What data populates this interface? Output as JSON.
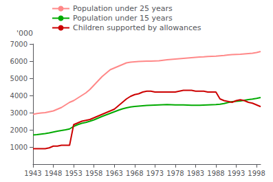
{
  "chart_data": {
    "type": "line",
    "ylabel": "'000",
    "x": [
      1943,
      1944,
      1945,
      1946,
      1947,
      1948,
      1949,
      1950,
      1951,
      1952,
      1953,
      1954,
      1955,
      1956,
      1957,
      1958,
      1959,
      1960,
      1961,
      1962,
      1963,
      1964,
      1965,
      1966,
      1967,
      1968,
      1969,
      1970,
      1971,
      1972,
      1973,
      1974,
      1975,
      1976,
      1977,
      1978,
      1979,
      1980,
      1981,
      1982,
      1983,
      1984,
      1985,
      1986,
      1987,
      1988,
      1989,
      1990,
      1991,
      1992,
      1993,
      1994,
      1995,
      1996,
      1997,
      1998,
      1999
    ],
    "series": [
      {
        "name": "Population under 25 years",
        "color": "#ff8888",
        "values": [
          2900,
          2950,
          2980,
          3000,
          3050,
          3100,
          3200,
          3300,
          3450,
          3600,
          3700,
          3850,
          4000,
          4150,
          4350,
          4600,
          4850,
          5100,
          5300,
          5500,
          5600,
          5700,
          5800,
          5900,
          5940,
          5960,
          5980,
          5990,
          6000,
          6000,
          6010,
          6020,
          6050,
          6080,
          6100,
          6120,
          6140,
          6160,
          6180,
          6200,
          6220,
          6240,
          6250,
          6270,
          6280,
          6290,
          6310,
          6330,
          6360,
          6380,
          6390,
          6400,
          6420,
          6440,
          6460,
          6500,
          6560
        ]
      },
      {
        "name": "Population under 15 years",
        "color": "#00aa00",
        "values": [
          1700,
          1720,
          1750,
          1780,
          1820,
          1870,
          1920,
          1960,
          2000,
          2050,
          2200,
          2300,
          2380,
          2430,
          2500,
          2580,
          2680,
          2780,
          2870,
          2960,
          3050,
          3140,
          3220,
          3280,
          3330,
          3360,
          3380,
          3400,
          3420,
          3430,
          3440,
          3450,
          3460,
          3470,
          3460,
          3450,
          3450,
          3450,
          3440,
          3430,
          3430,
          3430,
          3440,
          3450,
          3460,
          3470,
          3490,
          3530,
          3590,
          3640,
          3660,
          3680,
          3720,
          3760,
          3790,
          3830,
          3880
        ]
      },
      {
        "name": "Children supported by allowances",
        "color": "#cc0000",
        "values": [
          900,
          900,
          900,
          900,
          950,
          1050,
          1050,
          1100,
          1100,
          1100,
          2300,
          2400,
          2500,
          2550,
          2600,
          2700,
          2800,
          2900,
          3000,
          3100,
          3200,
          3400,
          3600,
          3800,
          3950,
          4050,
          4100,
          4200,
          4250,
          4250,
          4200,
          4200,
          4200,
          4200,
          4200,
          4200,
          4250,
          4300,
          4300,
          4300,
          4250,
          4250,
          4250,
          4200,
          4200,
          4200,
          3800,
          3700,
          3650,
          3600,
          3700,
          3750,
          3700,
          3600,
          3550,
          3450,
          3350
        ]
      }
    ],
    "xlim": [
      1943,
      1999
    ],
    "xticks": [
      1943,
      1948,
      1953,
      1958,
      1963,
      1968,
      1973,
      1978,
      1983,
      1988,
      1993,
      1998
    ],
    "ylim": [
      0,
      7000
    ],
    "yticks": [
      1000,
      2000,
      3000,
      4000,
      5000,
      6000,
      7000
    ],
    "grid": false,
    "legend": "upper left"
  }
}
